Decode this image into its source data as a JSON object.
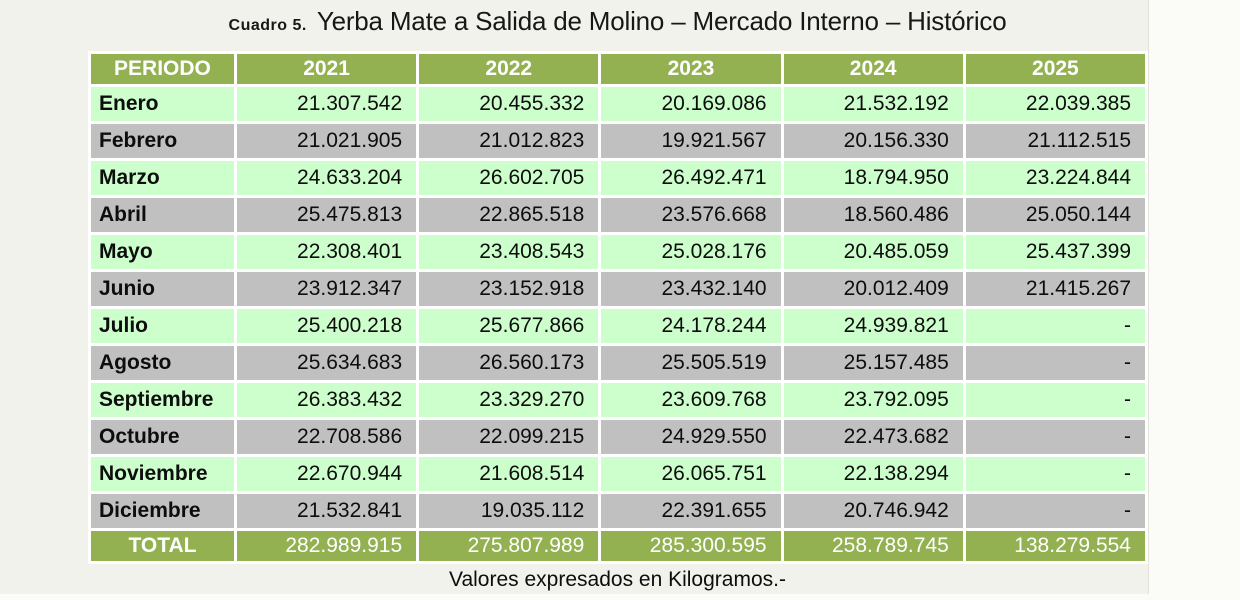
{
  "title": {
    "prefix": "Cuadro 5.",
    "main": "Yerba Mate a Salida de Molino  – Mercado Interno – Histórico"
  },
  "footer_note": "Valores expresados en Kilogramos.-",
  "colors": {
    "header_green": "#94b152",
    "row_green": "#ccffcc",
    "row_gray": "#c0c0c0",
    "gap_white": "#ffffff"
  },
  "table": {
    "period_header": "PERIODO",
    "years": [
      "2021",
      "2022",
      "2023",
      "2024",
      "2025"
    ],
    "rows": [
      {
        "month": "Enero",
        "values": [
          "21.307.542",
          "20.455.332",
          "20.169.086",
          "21.532.192",
          "22.039.385"
        ]
      },
      {
        "month": "Febrero",
        "values": [
          "21.021.905",
          "21.012.823",
          "19.921.567",
          "20.156.330",
          "21.112.515"
        ]
      },
      {
        "month": "Marzo",
        "values": [
          "24.633.204",
          "26.602.705",
          "26.492.471",
          "18.794.950",
          "23.224.844"
        ]
      },
      {
        "month": "Abril",
        "values": [
          "25.475.813",
          "22.865.518",
          "23.576.668",
          "18.560.486",
          "25.050.144"
        ]
      },
      {
        "month": "Mayo",
        "values": [
          "22.308.401",
          "23.408.543",
          "25.028.176",
          "20.485.059",
          "25.437.399"
        ]
      },
      {
        "month": "Junio",
        "values": [
          "23.912.347",
          "23.152.918",
          "23.432.140",
          "20.012.409",
          "21.415.267"
        ]
      },
      {
        "month": "Julio",
        "values": [
          "25.400.218",
          "25.677.866",
          "24.178.244",
          "24.939.821",
          "-"
        ]
      },
      {
        "month": "Agosto",
        "values": [
          "25.634.683",
          "26.560.173",
          "25.505.519",
          "25.157.485",
          "-"
        ]
      },
      {
        "month": "Septiembre",
        "values": [
          "26.383.432",
          "23.329.270",
          "23.609.768",
          "23.792.095",
          "-"
        ]
      },
      {
        "month": "Octubre",
        "values": [
          "22.708.586",
          "22.099.215",
          "24.929.550",
          "22.473.682",
          "-"
        ]
      },
      {
        "month": "Noviembre",
        "values": [
          "22.670.944",
          "21.608.514",
          "26.065.751",
          "22.138.294",
          "-"
        ]
      },
      {
        "month": "Diciembre",
        "values": [
          "21.532.841",
          "19.035.112",
          "22.391.655",
          "20.746.942",
          "-"
        ]
      }
    ],
    "total": {
      "label": "TOTAL",
      "values": [
        "282.989.915",
        "275.807.989",
        "285.300.595",
        "258.789.745",
        "138.279.554"
      ]
    }
  }
}
